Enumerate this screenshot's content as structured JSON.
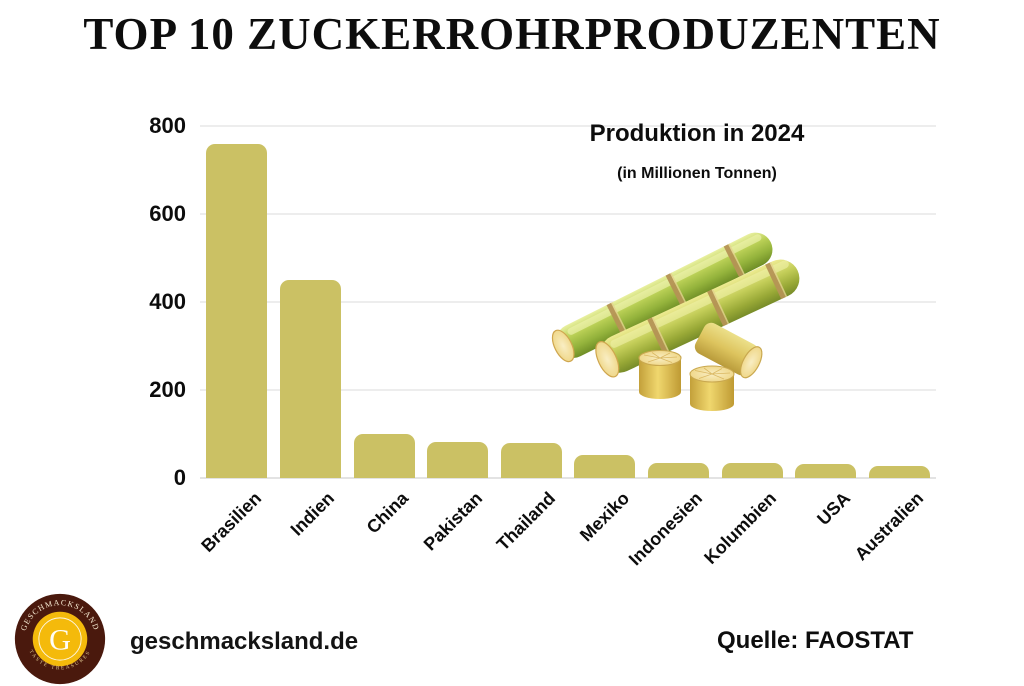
{
  "header": {
    "title": "TOP 10 ZUCKERROHRPRODUZENTEN"
  },
  "chart_data": {
    "type": "bar",
    "title": "Produktion in 2024",
    "subtitle": "(in Millionen Tonnen)",
    "categories": [
      "Brasilien",
      "Indien",
      "China",
      "Pakistan",
      "Thailand",
      "Mexiko",
      "Indonesien",
      "Kolumbien",
      "USA",
      "Australien"
    ],
    "values": [
      760,
      450,
      100,
      82,
      79,
      52,
      34,
      33,
      32,
      27
    ],
    "ylim": [
      0,
      800
    ],
    "yticks": [
      0,
      200,
      400,
      600,
      800
    ],
    "grid": true,
    "legend": "none",
    "bar_color": "#cbc164",
    "gridline_color": "#ededed",
    "baseline_color": "#e3e3e3"
  },
  "illustration": {
    "name": "sugarcane"
  },
  "footer": {
    "website": "geschmacksland.de",
    "source": "Quelle: FAOSTAT",
    "logo": {
      "monogram": "G",
      "arc_top": "GESCHMACKSLAND",
      "arc_bottom": "TASTE TREASURES",
      "ring_color": "#4a190d",
      "badge_color": "#f4ba0b"
    }
  }
}
